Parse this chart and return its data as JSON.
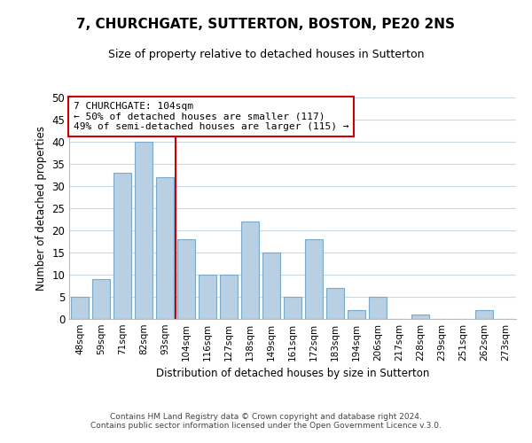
{
  "title": "7, CHURCHGATE, SUTTERTON, BOSTON, PE20 2NS",
  "subtitle": "Size of property relative to detached houses in Sutterton",
  "xlabel": "Distribution of detached houses by size in Sutterton",
  "ylabel": "Number of detached properties",
  "footer_line1": "Contains HM Land Registry data © Crown copyright and database right 2024.",
  "footer_line2": "Contains public sector information licensed under the Open Government Licence v.3.0.",
  "bar_labels": [
    "48sqm",
    "59sqm",
    "71sqm",
    "82sqm",
    "93sqm",
    "104sqm",
    "116sqm",
    "127sqm",
    "138sqm",
    "149sqm",
    "161sqm",
    "172sqm",
    "183sqm",
    "194sqm",
    "206sqm",
    "217sqm",
    "228sqm",
    "239sqm",
    "251sqm",
    "262sqm",
    "273sqm"
  ],
  "bar_values": [
    5,
    9,
    33,
    40,
    32,
    18,
    10,
    10,
    22,
    15,
    5,
    18,
    7,
    2,
    5,
    0,
    1,
    0,
    0,
    2,
    0
  ],
  "bar_color": "#b8cfe4",
  "bar_edge_color": "#7aaac8",
  "highlight_bar_index": 5,
  "highlight_line_color": "#cc0000",
  "annotation_title": "7 CHURCHGATE: 104sqm",
  "annotation_line1": "← 50% of detached houses are smaller (117)",
  "annotation_line2": "49% of semi-detached houses are larger (115) →",
  "annotation_box_color": "#ffffff",
  "annotation_box_edge_color": "#cc0000",
  "ylim": [
    0,
    50
  ],
  "yticks": [
    0,
    5,
    10,
    15,
    20,
    25,
    30,
    35,
    40,
    45,
    50
  ],
  "background_color": "#ffffff",
  "grid_color": "#c8d8e8"
}
